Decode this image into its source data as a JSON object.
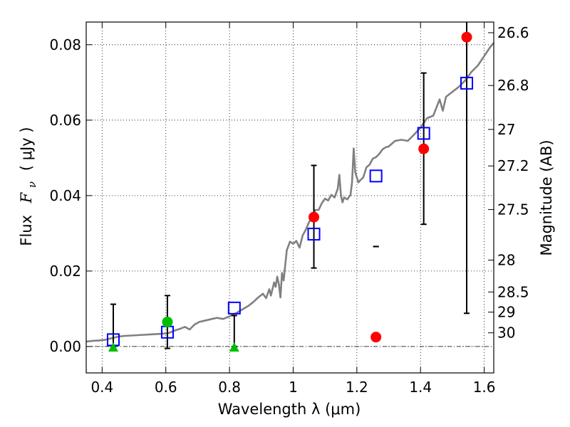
{
  "chart_data": {
    "type": "scatter",
    "xlabel": "Wavelength  λ (μm)",
    "ylabel_prefix": "Flux",
    "ylabel_symbol": "F",
    "ylabel_subscript": "ν",
    "ylabel_unit": "( μJy )",
    "y2label": "Magnitude (AB)",
    "xlim": [
      0.35,
      1.63
    ],
    "ylim": [
      -0.007,
      0.086
    ],
    "grid": true,
    "x_ticks": [
      {
        "value": 0.4,
        "label": "0.4"
      },
      {
        "value": 0.6,
        "label": "0.6"
      },
      {
        "value": 0.8,
        "label": "0.8"
      },
      {
        "value": 1.0,
        "label": "1"
      },
      {
        "value": 1.2,
        "label": "1.2"
      },
      {
        "value": 1.4,
        "label": "1.4"
      },
      {
        "value": 1.6,
        "label": "1.6"
      }
    ],
    "y_ticks": [
      {
        "value": 0.0,
        "label": "0.00"
      },
      {
        "value": 0.02,
        "label": "0.02"
      },
      {
        "value": 0.04,
        "label": "0.04"
      },
      {
        "value": 0.06,
        "label": "0.06"
      },
      {
        "value": 0.08,
        "label": "0.08"
      }
    ],
    "y2_ticks": [
      {
        "value": 26.6,
        "label": "26.6"
      },
      {
        "value": 26.8,
        "label": "26.8"
      },
      {
        "value": 27.0,
        "label": "27"
      },
      {
        "value": 27.2,
        "label": "27.2"
      },
      {
        "value": 27.5,
        "label": "27.5"
      },
      {
        "value": 28.0,
        "label": "28"
      },
      {
        "value": 28.5,
        "label": "28.5"
      },
      {
        "value": 29.0,
        "label": "29"
      },
      {
        "value": 30.0,
        "label": "30"
      }
    ],
    "reference_line": {
      "y": 0.0,
      "style": "dash-dot",
      "color": "#000000"
    },
    "series": [
      {
        "name": "model spectrum",
        "kind": "line",
        "color": "#808080",
        "x": [
          0.35,
          0.37,
          0.39,
          0.41,
          0.43,
          0.45,
          0.47,
          0.49,
          0.51,
          0.53,
          0.55,
          0.57,
          0.59,
          0.61,
          0.63,
          0.645,
          0.66,
          0.675,
          0.69,
          0.705,
          0.72,
          0.74,
          0.76,
          0.78,
          0.8,
          0.82,
          0.84,
          0.86,
          0.875,
          0.89,
          0.905,
          0.915,
          0.925,
          0.93,
          0.94,
          0.945,
          0.95,
          0.955,
          0.96,
          0.965,
          0.97,
          0.98,
          0.99,
          1.0,
          1.01,
          1.02,
          1.03,
          1.04,
          1.05,
          1.06,
          1.07,
          1.08,
          1.09,
          1.1,
          1.11,
          1.12,
          1.13,
          1.14,
          1.145,
          1.15,
          1.155,
          1.16,
          1.17,
          1.18,
          1.185,
          1.19,
          1.195,
          1.2,
          1.205,
          1.21,
          1.22,
          1.23,
          1.24,
          1.25,
          1.26,
          1.27,
          1.28,
          1.29,
          1.3,
          1.32,
          1.34,
          1.36,
          1.38,
          1.4,
          1.42,
          1.44,
          1.46,
          1.47,
          1.48,
          1.5,
          1.52,
          1.54,
          1.56,
          1.58,
          1.6,
          1.62,
          1.63
        ],
        "y": [
          0.0013,
          0.0015,
          0.0016,
          0.0018,
          0.0022,
          0.0026,
          0.0028,
          0.0029,
          0.003,
          0.0031,
          0.0032,
          0.0033,
          0.0034,
          0.0036,
          0.0043,
          0.0047,
          0.0052,
          0.0045,
          0.0058,
          0.0065,
          0.0068,
          0.0072,
          0.0076,
          0.0073,
          0.008,
          0.0088,
          0.0098,
          0.0108,
          0.0118,
          0.013,
          0.014,
          0.0128,
          0.0152,
          0.0135,
          0.017,
          0.0158,
          0.0185,
          0.0165,
          0.013,
          0.0195,
          0.0175,
          0.0255,
          0.0278,
          0.0272,
          0.028,
          0.0262,
          0.0295,
          0.031,
          0.033,
          0.0345,
          0.0362,
          0.0362,
          0.038,
          0.0392,
          0.0387,
          0.0402,
          0.0395,
          0.0418,
          0.0455,
          0.04,
          0.0382,
          0.0395,
          0.039,
          0.0402,
          0.0435,
          0.0525,
          0.0462,
          0.0448,
          0.0435,
          0.044,
          0.0448,
          0.0475,
          0.0482,
          0.0498,
          0.0502,
          0.051,
          0.0522,
          0.0528,
          0.053,
          0.0545,
          0.0548,
          0.0545,
          0.0562,
          0.058,
          0.0605,
          0.0612,
          0.0655,
          0.0625,
          0.0662,
          0.0675,
          0.0688,
          0.0705,
          0.0728,
          0.0745,
          0.077,
          0.0795,
          0.0805
        ]
      },
      {
        "name": "model photometry",
        "kind": "open-square",
        "color": "#0000ff",
        "x": [
          0.435,
          0.605,
          0.815,
          1.065,
          1.26,
          1.41,
          1.545
        ],
        "y": [
          0.0018,
          0.0038,
          0.0102,
          0.0298,
          0.0452,
          0.0565,
          0.0698
        ]
      },
      {
        "name": "observed detections",
        "kind": "filled-circle",
        "color": "#ff0000",
        "x": [
          1.065,
          1.26,
          1.41,
          1.545
        ],
        "y": [
          0.0343,
          0.0025,
          0.0524,
          0.082
        ],
        "err_low": [
          0.0208,
          0.0265,
          0.0324,
          0.0088
        ],
        "err_high": [
          0.048,
          0.0265,
          0.0725,
          0.0886
        ]
      },
      {
        "name": "observed optical detection",
        "kind": "filled-circle",
        "color": "#00bf00",
        "x": [
          0.605
        ],
        "y": [
          0.0065
        ],
        "err_low": [
          -0.0005
        ],
        "err_high": [
          0.0135
        ]
      },
      {
        "name": "upper limits",
        "kind": "filled-triangle",
        "color": "#00bf00",
        "x": [
          0.435,
          0.815
        ],
        "y": [
          -0.0002,
          -0.0002
        ],
        "err_low": [
          0.0,
          0.0
        ],
        "err_high": [
          0.0112,
          0.0082
        ]
      }
    ]
  }
}
